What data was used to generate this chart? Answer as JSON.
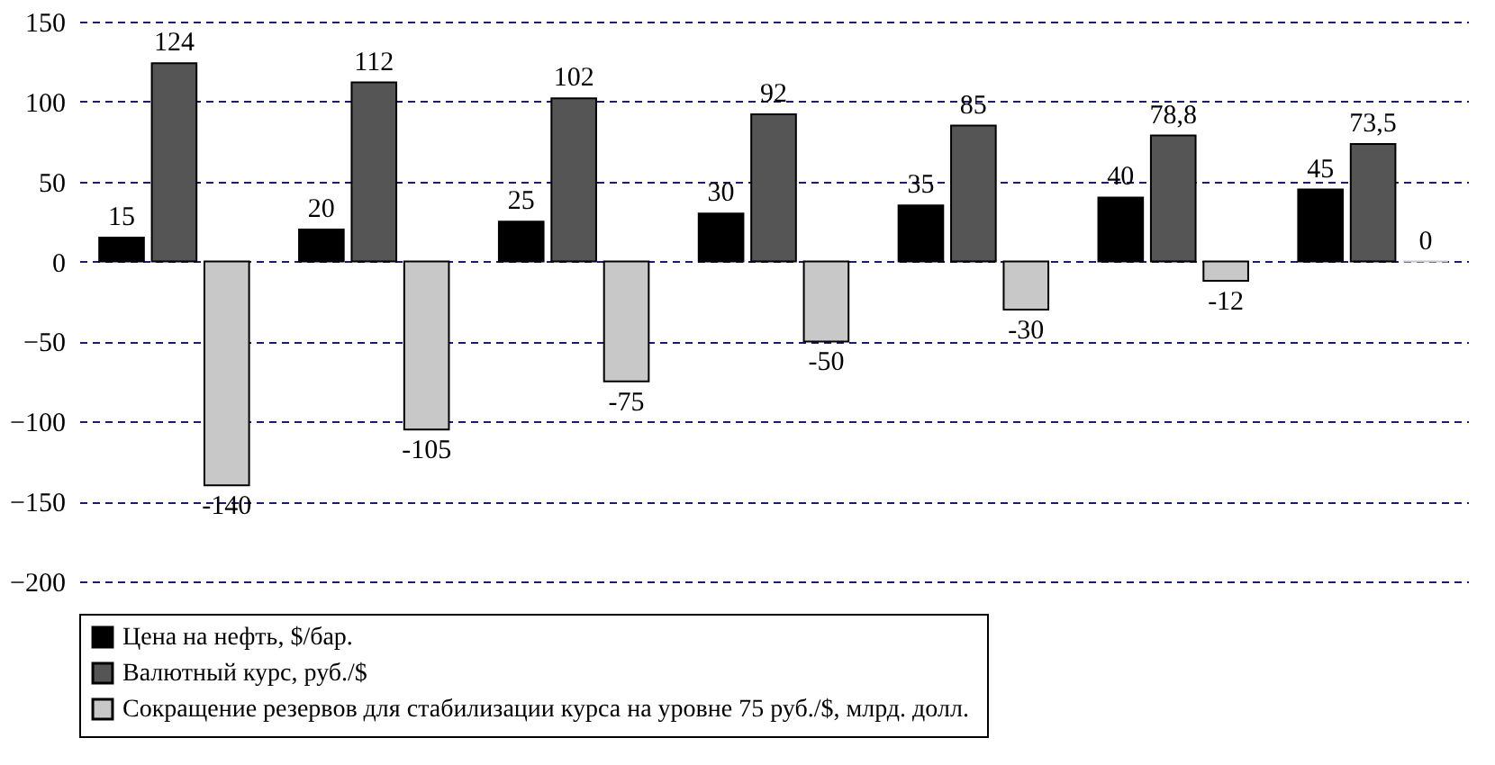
{
  "chart_data": {
    "type": "bar",
    "categories": [
      null,
      null,
      null,
      null,
      null,
      null,
      null
    ],
    "series": [
      {
        "name": "Цена на нефть, $/бар.",
        "color": "#000000",
        "values": [
          15,
          20,
          25,
          30,
          35,
          40,
          45
        ],
        "value_labels": [
          "15",
          "20",
          "25",
          "30",
          "35",
          "40",
          "45"
        ]
      },
      {
        "name": "Валютный курс, руб./$",
        "color": "#555555",
        "values": [
          124,
          112,
          102,
          92,
          85,
          78.8,
          73.5
        ],
        "value_labels": [
          "124",
          "112",
          "102",
          "92",
          "85",
          "78,8",
          "73,5"
        ]
      },
      {
        "name": "Сокращение резервов для стабилизации  курса на уровне 75 руб./$, млрд. долл.",
        "color": "#c8c8c8",
        "values": [
          -140,
          -105,
          -75,
          -50,
          -30,
          -12,
          0
        ],
        "value_labels": [
          "-140",
          "-105",
          "-75",
          "-50",
          "-30",
          "-12",
          "0"
        ]
      }
    ],
    "ylim": [
      -200,
      150
    ],
    "yticks": [
      -200,
      -150,
      -100,
      -50,
      0,
      50,
      100,
      150
    ],
    "grid": "y",
    "legend": "bottom",
    "tick_labels": "y"
  }
}
